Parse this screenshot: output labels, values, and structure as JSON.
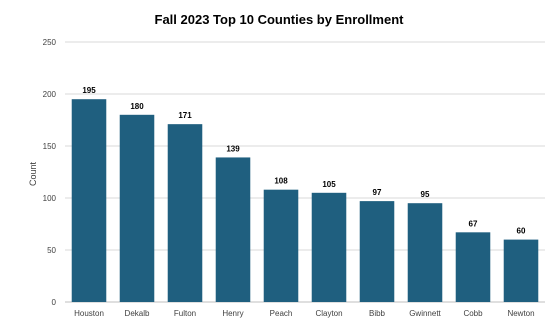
{
  "chart_data": {
    "type": "bar",
    "title": "Fall 2023 Top 10 Counties by Enrollment",
    "xlabel": "",
    "ylabel": "Count",
    "categories": [
      "Houston",
      "Dekalb",
      "Fulton",
      "Henry",
      "Peach",
      "Clayton",
      "Bibb",
      "Gwinnett",
      "Cobb",
      "Newton"
    ],
    "values": [
      195,
      180,
      171,
      139,
      108,
      105,
      97,
      95,
      67,
      60
    ],
    "ylim": [
      0,
      250
    ],
    "yticks": [
      0,
      50,
      100,
      150,
      200,
      250
    ],
    "grid": true,
    "bar_color": "#1f5f7f",
    "data_labels": true,
    "legend": "none"
  }
}
